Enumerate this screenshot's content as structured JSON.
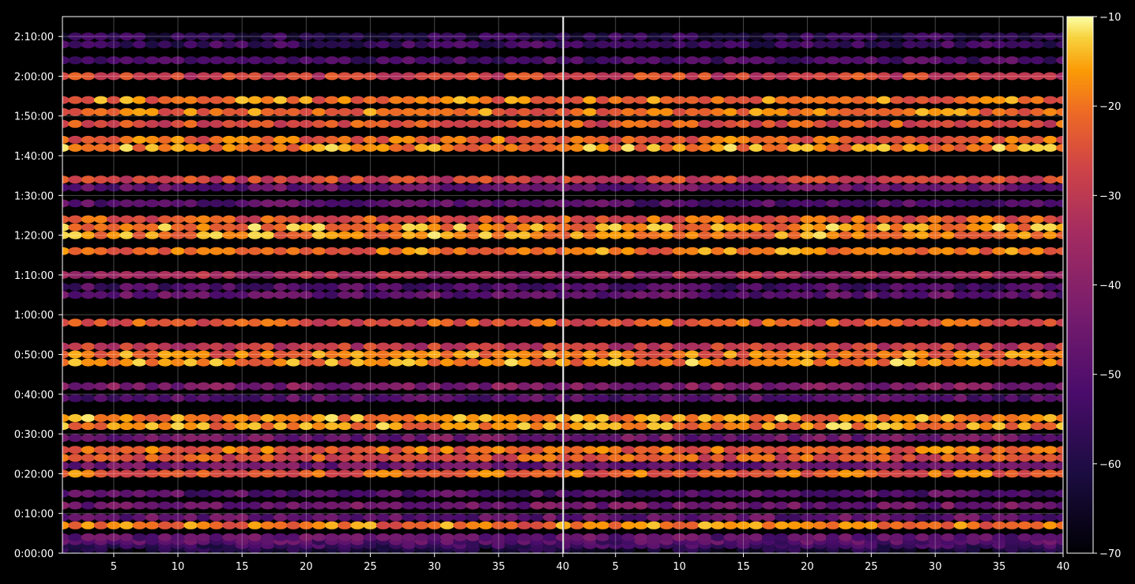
{
  "chart_data": {
    "type": "heatmap",
    "title": "",
    "xlabel": "",
    "ylabel": "",
    "grid": true,
    "colormap": "inferno",
    "colorbar": {
      "orientation": "vertical",
      "range": [
        -70,
        -10
      ],
      "ticks": [
        -10,
        -20,
        -30,
        -40,
        -50,
        -60,
        -70
      ],
      "tick_labels": [
        "−10",
        "−20",
        "−30",
        "−40",
        "−50",
        "−60",
        "−70"
      ]
    },
    "panels": [
      {
        "xlim": [
          1,
          40
        ],
        "xticks": [
          5,
          10,
          15,
          20,
          25,
          30,
          35,
          40
        ],
        "xtick_labels": [
          "5",
          "10",
          "15",
          "20",
          "25",
          "30",
          "35",
          "40"
        ]
      },
      {
        "xlim": [
          1,
          40
        ],
        "xticks": [
          5,
          10,
          15,
          20,
          25,
          30,
          35,
          40
        ],
        "xtick_labels": [
          "5",
          "10",
          "15",
          "20",
          "25",
          "30",
          "35",
          "40"
        ]
      }
    ],
    "y_axis": {
      "range_seconds": [
        0,
        8100
      ],
      "ticks_seconds": [
        0,
        600,
        1200,
        1800,
        2400,
        3000,
        3600,
        4200,
        4800,
        5400,
        6000,
        6600,
        7200,
        7800
      ],
      "tick_labels": [
        "0:00:00",
        "0:10:00",
        "0:20:00",
        "0:30:00",
        "0:40:00",
        "0:50:00",
        "1:00:00",
        "1:10:00",
        "1:20:00",
        "1:30:00",
        "1:40:00",
        "1:50:00",
        "2:00:00",
        "2:10:00"
      ]
    },
    "row_profile": {
      "description_free": true,
      "rows_seconds_and_level": [
        [
          60,
          -62
        ],
        [
          120,
          -55
        ],
        [
          180,
          -50
        ],
        [
          240,
          -48
        ],
        [
          420,
          -20
        ],
        [
          540,
          -48
        ],
        [
          720,
          -45
        ],
        [
          900,
          -50
        ],
        [
          1200,
          -22
        ],
        [
          1320,
          -45
        ],
        [
          1440,
          -25
        ],
        [
          1560,
          -22
        ],
        [
          1740,
          -45
        ],
        [
          1920,
          -18
        ],
        [
          2040,
          -18
        ],
        [
          2340,
          -50
        ],
        [
          2520,
          -42
        ],
        [
          2880,
          -18
        ],
        [
          3000,
          -20
        ],
        [
          3120,
          -30
        ],
        [
          3480,
          -24
        ],
        [
          3900,
          -48
        ],
        [
          4020,
          -52
        ],
        [
          4200,
          -35
        ],
        [
          4560,
          -20
        ],
        [
          4800,
          -18
        ],
        [
          4920,
          -18
        ],
        [
          5040,
          -24
        ],
        [
          5280,
          -50
        ],
        [
          5520,
          -48
        ],
        [
          5640,
          -28
        ],
        [
          6120,
          -18
        ],
        [
          6240,
          -22
        ],
        [
          6480,
          -25
        ],
        [
          6660,
          -20
        ],
        [
          6840,
          -20
        ],
        [
          7200,
          -28
        ],
        [
          7440,
          -52
        ],
        [
          7680,
          -55
        ],
        [
          7800,
          -58
        ]
      ]
    }
  }
}
